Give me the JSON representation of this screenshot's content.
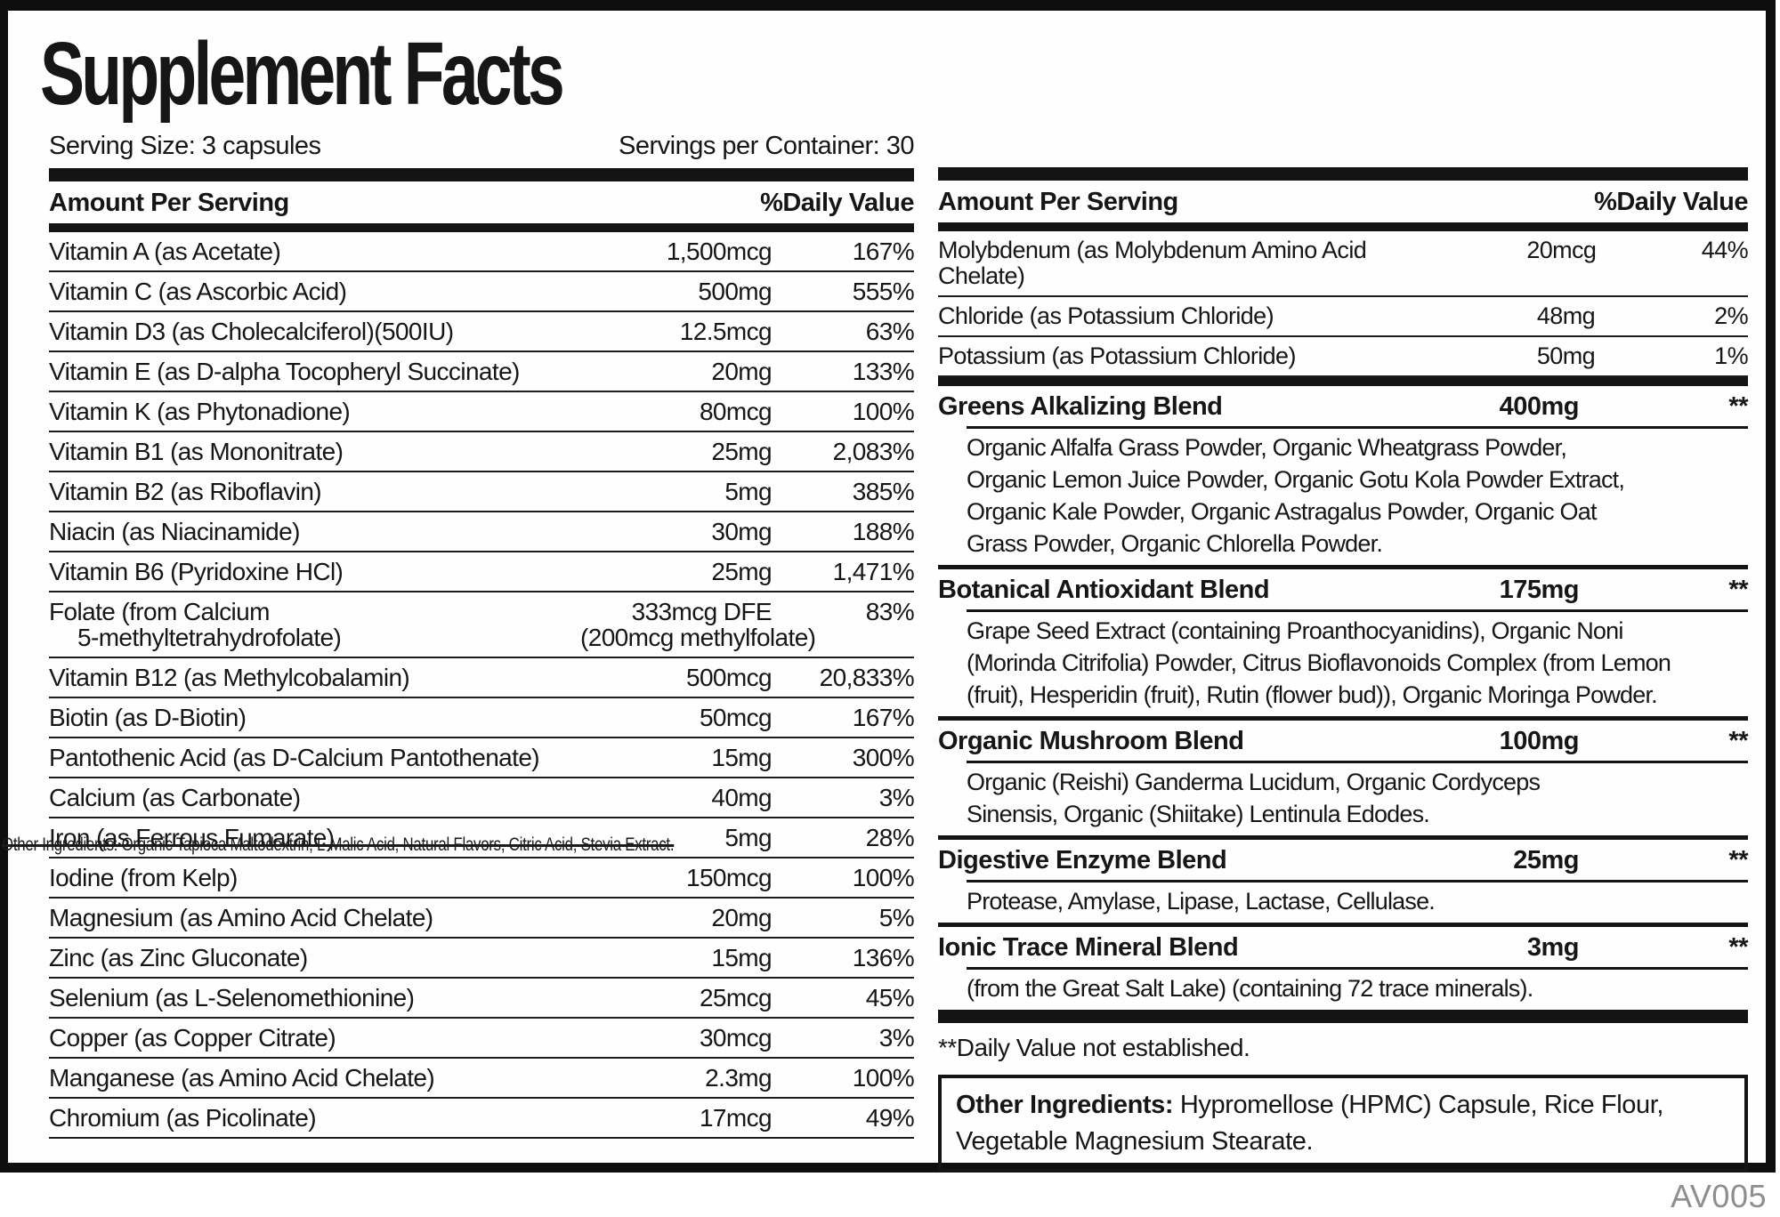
{
  "title": "Supplement Facts",
  "serving": {
    "size_label": "Serving Size: 3 capsules",
    "per_container_label": "Servings per Container: 30"
  },
  "left_table": {
    "header": {
      "amount": "Amount Per Serving",
      "daily_value": "%Daily Value"
    },
    "rows": [
      {
        "name": "Vitamin A (as Acetate)",
        "amount": "1,500mcg",
        "dv": "167%"
      },
      {
        "name": "Vitamin C (as Ascorbic Acid)",
        "amount": "500mg",
        "dv": "555%"
      },
      {
        "name": "Vitamin D3 (as Cholecalciferol)(500IU)",
        "amount": "12.5mcg",
        "dv": "63%"
      },
      {
        "name": "Vitamin E (as D-alpha Tocopheryl Succinate)",
        "amount": "20mg",
        "dv": "133%"
      },
      {
        "name": "Vitamin K (as Phytonadione)",
        "amount": "80mcg",
        "dv": "100%"
      },
      {
        "name": "Vitamin B1 (as Mononitrate)",
        "amount": "25mg",
        "dv": "2,083%"
      },
      {
        "name": "Vitamin B2 (as Riboflavin)",
        "amount": "5mg",
        "dv": "385%"
      },
      {
        "name": "Niacin (as Niacinamide)",
        "amount": "30mg",
        "dv": "188%"
      },
      {
        "name": "Vitamin B6 (Pyridoxine HCl)",
        "amount": "25mg",
        "dv": "1,471%"
      },
      {
        "name": "Folate (from Calcium",
        "name_line2": "5-methyltetrahydrofolate)",
        "amount": "333mcg DFE",
        "amount_line2": "(200mcg methylfolate)",
        "dv": "83%"
      },
      {
        "name": "Vitamin B12 (as Methylcobalamin)",
        "amount": "500mcg",
        "dv": "20,833%"
      },
      {
        "name": "Biotin (as D-Biotin)",
        "amount": "50mcg",
        "dv": "167%"
      },
      {
        "name": "Pantothenic Acid (as D-Calcium Pantothenate)",
        "amount": "15mg",
        "dv": "300%"
      },
      {
        "name": "Calcium (as Carbonate)",
        "amount": "40mg",
        "dv": "3%"
      },
      {
        "name": "Iron (as Ferrous Fumarate)",
        "amount": "5mg",
        "dv": "28%"
      },
      {
        "name": "Iodine (from Kelp)",
        "amount": "150mcg",
        "dv": "100%"
      },
      {
        "name": "Magnesium (as Amino Acid Chelate)",
        "amount": "20mg",
        "dv": "5%"
      },
      {
        "name": "Zinc (as Zinc Gluconate)",
        "amount": "15mg",
        "dv": "136%"
      },
      {
        "name": "Selenium (as L-Selenomethionine)",
        "amount": "25mcg",
        "dv": "45%"
      },
      {
        "name": "Copper (as Copper Citrate)",
        "amount": "30mcg",
        "dv": "3%"
      },
      {
        "name": "Manganese (as Amino Acid Chelate)",
        "amount": "2.3mg",
        "dv": "100%"
      },
      {
        "name": "Chromium (as Picolinate)",
        "amount": "17mcg",
        "dv": "49%"
      }
    ]
  },
  "strikethrough_note": "Other Ingredients: Organic Tapioca Maltodextrin, L-Malic Acid, Natural Flavors, Citric Acid, Stevia Extract.",
  "right_table": {
    "header": {
      "amount": "Amount Per Serving",
      "daily_value": "%Daily Value"
    },
    "rows": [
      {
        "name": "Molybdenum (as Molybdenum Amino Acid Chelate)",
        "amount": "20mcg",
        "dv": "44%"
      },
      {
        "name": "Chloride (as Potassium Chloride)",
        "amount": "48mg",
        "dv": "2%"
      },
      {
        "name": "Potassium (as Potassium Chloride)",
        "amount": "50mg",
        "dv": "1%"
      }
    ],
    "blends": [
      {
        "name": "Greens Alkalizing Blend",
        "amount": "400mg",
        "dv": "**",
        "lines": [
          "Organic Alfalfa Grass Powder, Organic Wheatgrass Powder,",
          "Organic Lemon Juice Powder, Organic Gotu Kola Powder Extract,",
          "Organic Kale Powder, Organic Astragalus Powder, Organic Oat",
          "Grass Powder, Organic Chlorella Powder."
        ]
      },
      {
        "name": "Botanical Antioxidant Blend",
        "amount": "175mg",
        "dv": "**",
        "lines": [
          "Grape Seed Extract (containing Proanthocyanidins), Organic Noni",
          "(Morinda Citrifolia) Powder, Citrus Bioflavonoids Complex (from Lemon",
          "(fruit), Hesperidin (fruit), Rutin (flower bud)), Organic Moringa Powder."
        ]
      },
      {
        "name": "Organic Mushroom Blend",
        "amount": "100mg",
        "dv": "**",
        "lines": [
          "Organic (Reishi) Ganderma Lucidum, Organic Cordyceps",
          "Sinensis, Organic (Shiitake) Lentinula Edodes."
        ]
      },
      {
        "name": "Digestive Enzyme Blend",
        "amount": "25mg",
        "dv": "**",
        "lines": [
          "Protease, Amylase, Lipase, Lactase, Cellulase."
        ]
      },
      {
        "name": "Ionic Trace Mineral Blend",
        "amount": "3mg",
        "dv": "**",
        "lines": [
          "(from the Great Salt Lake) (containing 72 trace minerals)."
        ]
      }
    ],
    "footnote": "**Daily Value not established.",
    "other_ingredients": {
      "label": "Other Ingredients:",
      "text": " Hypromellose (HPMC) Capsule, Rice Flour, Vegetable Magnesium Stearate."
    }
  },
  "footer_code": "AV005",
  "colors": {
    "text": "#161616",
    "bars": "#141414",
    "muted": "#8e8e8e"
  }
}
